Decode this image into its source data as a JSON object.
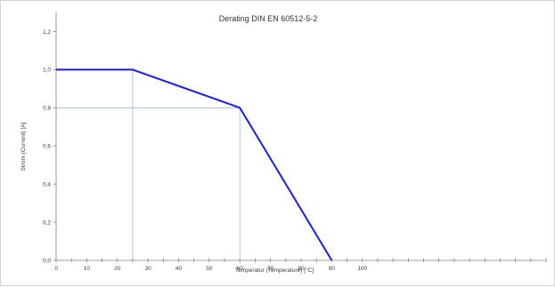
{
  "chart_data": {
    "type": "line",
    "title": "Derating DIN EN 60512-5-2",
    "xlabel": "Temperatur (Temperature) [°C]",
    "ylabel": "Strom (Current) [A]",
    "xlim": [
      0,
      160
    ],
    "ylim": [
      0,
      1.3
    ],
    "x_ticks": [
      "0",
      "10",
      "20",
      "30",
      "40",
      "50",
      "60",
      "70",
      "80",
      "90",
      "100"
    ],
    "x_tick_values": [
      0,
      10,
      20,
      30,
      40,
      50,
      60,
      70,
      80,
      90,
      100
    ],
    "x_minor_step": 5,
    "y_ticks": [
      "0,0",
      "0,2",
      "0,4",
      "0,6",
      "0,8",
      "1,0",
      "1,2"
    ],
    "y_tick_values": [
      0,
      0.2,
      0.4,
      0.6,
      0.8,
      1.0,
      1.2
    ],
    "grid": false,
    "legend": "none",
    "series": [
      {
        "x": [
          0,
          25,
          60,
          90
        ],
        "y": [
          1.0,
          1.0,
          0.8,
          0.0
        ],
        "color": "#1a1aff"
      }
    ],
    "reference_lines": [
      {
        "x": [
          25,
          25
        ],
        "y": [
          0,
          1.0
        ]
      },
      {
        "x": [
          0,
          60
        ],
        "y": [
          0.8,
          0.8
        ]
      },
      {
        "x": [
          60,
          60
        ],
        "y": [
          0,
          0.8
        ]
      }
    ],
    "reference_color": "#9fb3d9"
  }
}
